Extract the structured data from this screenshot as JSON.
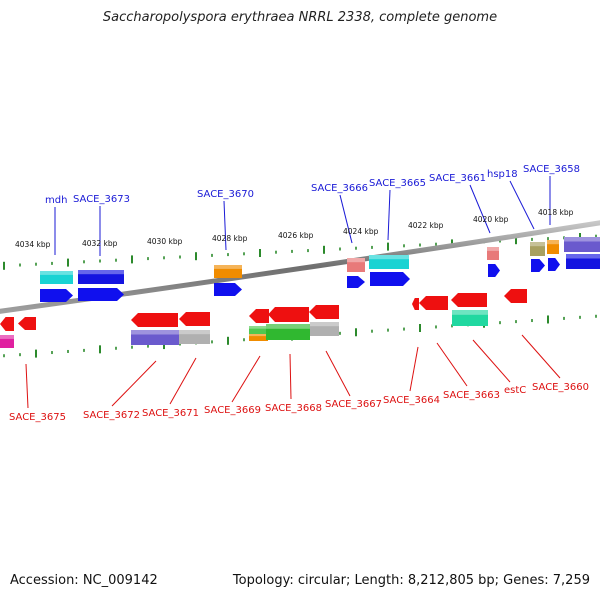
{
  "title": "Saccharopolyspora erythraea NRRL 2338, complete genome",
  "footer": {
    "accession": "Accession: NC_009142",
    "summary": "Topology: circular; Length: 8,212,805 bp; Genes: 7,259"
  },
  "colors": {
    "forward_label": "#1a1ad6",
    "reverse_label": "#dd1111",
    "backbone": "#8a8a8a",
    "tick": "#2c8a2c"
  },
  "kbp_labels": [
    "4034 kbp",
    "4032 kbp",
    "4030 kbp",
    "4028 kbp",
    "4026 kbp",
    "4024 kbp",
    "4022 kbp",
    "4020 kbp",
    "4018 kbp"
  ],
  "forward_labels": [
    "mdh",
    "SACE_3673",
    "SACE_3670",
    "SACE_3666",
    "SACE_3665",
    "SACE_3661",
    "hsp18",
    "SACE_3658"
  ],
  "reverse_labels": [
    "SACE_3675",
    "SACE_3672",
    "SACE_3671",
    "SACE_3669",
    "SACE_3668",
    "SACE_3667",
    "SACE_3664",
    "SACE_3663",
    "estC",
    "SACE_3660"
  ]
}
